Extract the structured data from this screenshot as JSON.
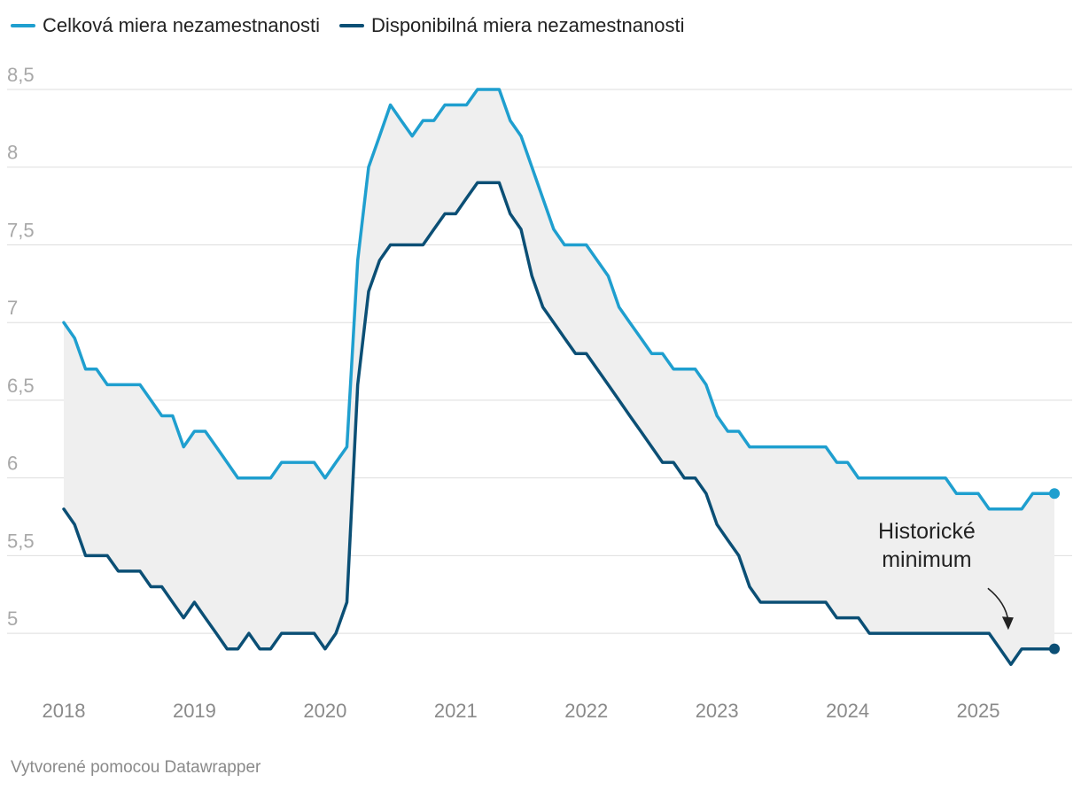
{
  "chart_data": {
    "type": "line",
    "ylim": [
      4.75,
      8.5
    ],
    "yticks": [
      "8,5",
      "8",
      "7,5",
      "7",
      "6,5",
      "6",
      "5,5",
      "5"
    ],
    "ytick_values": [
      8.5,
      8,
      7.5,
      7,
      6.5,
      6,
      5.5,
      5
    ],
    "xticks": [
      "2018",
      "2019",
      "2020",
      "2021",
      "2022",
      "2023",
      "2024",
      "2025"
    ],
    "xtick_values": [
      2018,
      2019,
      2020,
      2021,
      2022,
      2023,
      2024,
      2025
    ],
    "fill_between": true,
    "series": [
      {
        "name": "Celková miera nezamestnanosti",
        "color": "#1f9fcf",
        "x": [
          2018.0,
          2018.083,
          2018.167,
          2018.25,
          2018.333,
          2018.417,
          2018.5,
          2018.583,
          2018.667,
          2018.75,
          2018.833,
          2018.917,
          2019.0,
          2019.083,
          2019.167,
          2019.25,
          2019.333,
          2019.417,
          2019.5,
          2019.583,
          2019.667,
          2019.75,
          2019.833,
          2019.917,
          2020.0,
          2020.083,
          2020.167,
          2020.25,
          2020.333,
          2020.417,
          2020.5,
          2020.583,
          2020.667,
          2020.75,
          2020.833,
          2020.917,
          2021.0,
          2021.083,
          2021.167,
          2021.25,
          2021.333,
          2021.417,
          2021.5,
          2021.583,
          2021.667,
          2021.75,
          2021.833,
          2021.917,
          2022.0,
          2022.083,
          2022.167,
          2022.25,
          2022.333,
          2022.417,
          2022.5,
          2022.583,
          2022.667,
          2022.75,
          2022.833,
          2022.917,
          2023.0,
          2023.083,
          2023.167,
          2023.25,
          2023.333,
          2023.417,
          2023.5,
          2023.583,
          2023.667,
          2023.75,
          2023.833,
          2023.917,
          2024.0,
          2024.083,
          2024.167,
          2024.25,
          2024.333,
          2024.417,
          2024.5,
          2024.583,
          2024.667,
          2024.75,
          2024.833,
          2024.917,
          2025.0,
          2025.083,
          2025.167,
          2025.25,
          2025.333,
          2025.417,
          2025.5,
          2025.583
        ],
        "y": [
          7.0,
          6.9,
          6.7,
          6.7,
          6.6,
          6.6,
          6.6,
          6.6,
          6.5,
          6.4,
          6.4,
          6.2,
          6.3,
          6.3,
          6.2,
          6.1,
          6.0,
          6.0,
          6.0,
          6.0,
          6.1,
          6.1,
          6.1,
          6.1,
          6.0,
          6.1,
          6.2,
          7.4,
          8.0,
          8.2,
          8.4,
          8.3,
          8.2,
          8.3,
          8.3,
          8.4,
          8.4,
          8.4,
          8.5,
          8.5,
          8.5,
          8.3,
          8.2,
          8.0,
          7.8,
          7.6,
          7.5,
          7.5,
          7.5,
          7.4,
          7.3,
          7.1,
          7.0,
          6.9,
          6.8,
          6.8,
          6.7,
          6.7,
          6.7,
          6.6,
          6.4,
          6.3,
          6.3,
          6.2,
          6.2,
          6.2,
          6.2,
          6.2,
          6.2,
          6.2,
          6.2,
          6.1,
          6.1,
          6.0,
          6.0,
          6.0,
          6.0,
          6.0,
          6.0,
          6.0,
          6.0,
          6.0,
          5.9,
          5.9,
          5.9,
          5.8,
          5.8,
          5.8,
          5.8,
          5.9,
          5.9,
          5.9
        ]
      },
      {
        "name": "Disponibilná miera nezamestnanosti",
        "color": "#0b4f75",
        "x": [
          2018.0,
          2018.083,
          2018.167,
          2018.25,
          2018.333,
          2018.417,
          2018.5,
          2018.583,
          2018.667,
          2018.75,
          2018.833,
          2018.917,
          2019.0,
          2019.083,
          2019.167,
          2019.25,
          2019.333,
          2019.417,
          2019.5,
          2019.583,
          2019.667,
          2019.75,
          2019.833,
          2019.917,
          2020.0,
          2020.083,
          2020.167,
          2020.25,
          2020.333,
          2020.417,
          2020.5,
          2020.583,
          2020.667,
          2020.75,
          2020.833,
          2020.917,
          2021.0,
          2021.083,
          2021.167,
          2021.25,
          2021.333,
          2021.417,
          2021.5,
          2021.583,
          2021.667,
          2021.75,
          2021.833,
          2021.917,
          2022.0,
          2022.083,
          2022.167,
          2022.25,
          2022.333,
          2022.417,
          2022.5,
          2022.583,
          2022.667,
          2022.75,
          2022.833,
          2022.917,
          2023.0,
          2023.083,
          2023.167,
          2023.25,
          2023.333,
          2023.417,
          2023.5,
          2023.583,
          2023.667,
          2023.75,
          2023.833,
          2023.917,
          2024.0,
          2024.083,
          2024.167,
          2024.25,
          2024.333,
          2024.417,
          2024.5,
          2024.583,
          2024.667,
          2024.75,
          2024.833,
          2024.917,
          2025.0,
          2025.083,
          2025.167,
          2025.25,
          2025.333,
          2025.417,
          2025.5,
          2025.583
        ],
        "y": [
          5.8,
          5.7,
          5.5,
          5.5,
          5.5,
          5.4,
          5.4,
          5.4,
          5.3,
          5.3,
          5.2,
          5.1,
          5.2,
          5.1,
          5.0,
          4.9,
          4.9,
          5.0,
          4.9,
          4.9,
          5.0,
          5.0,
          5.0,
          5.0,
          4.9,
          5.0,
          5.2,
          6.6,
          7.2,
          7.4,
          7.5,
          7.5,
          7.5,
          7.5,
          7.6,
          7.7,
          7.7,
          7.8,
          7.9,
          7.9,
          7.9,
          7.7,
          7.6,
          7.3,
          7.1,
          7.0,
          6.9,
          6.8,
          6.8,
          6.7,
          6.6,
          6.5,
          6.4,
          6.3,
          6.2,
          6.1,
          6.1,
          6.0,
          6.0,
          5.9,
          5.7,
          5.6,
          5.5,
          5.3,
          5.2,
          5.2,
          5.2,
          5.2,
          5.2,
          5.2,
          5.2,
          5.1,
          5.1,
          5.1,
          5.0,
          5.0,
          5.0,
          5.0,
          5.0,
          5.0,
          5.0,
          5.0,
          5.0,
          5.0,
          5.0,
          5.0,
          4.9,
          4.8,
          4.9,
          4.9,
          4.9,
          4.9
        ]
      }
    ],
    "annotation": {
      "lines": [
        "Historické",
        "minimum"
      ],
      "points_to": {
        "x": 2025.25,
        "y": 4.8
      }
    }
  },
  "footer": {
    "credit": "Vytvorené pomocou Datawrapper"
  }
}
